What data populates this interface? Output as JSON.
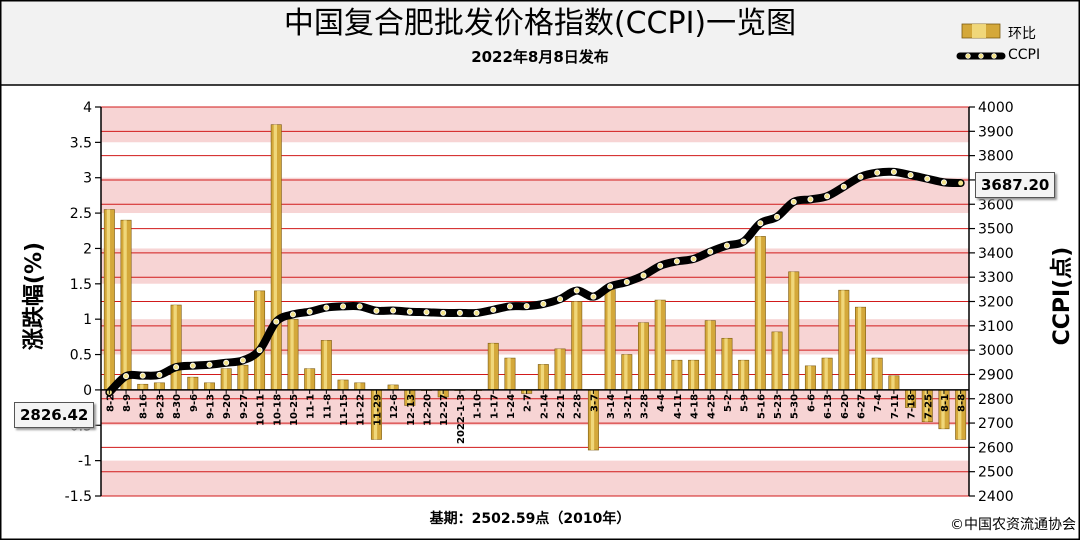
{
  "header": {
    "title": "中国复合肥批发价格指数(CCPI)一览图",
    "subtitle": "2022年8月8日发布"
  },
  "legend": {
    "bar_label": "环比",
    "line_label": "CCPI"
  },
  "footer": {
    "base_note": "基期：2502.59点（2010年）",
    "copyright": "©中国农资流通协会"
  },
  "callouts": {
    "start_value": "2826.42",
    "end_value": "3687.20"
  },
  "colors": {
    "bar_fill": "#d4a83a",
    "bar_highlight": "#f4df86",
    "band_pink": "#f7d4d4",
    "grid_line": "#d11a1a",
    "line_color": "#000000",
    "marker_color": "#f2e28a"
  },
  "chart_data": {
    "type": "bar+line",
    "title": "中国复合肥批发价格指数(CCPI)一览图",
    "subtitle": "2022年8月8日发布",
    "ylabel_left": "涨跌幅(%)",
    "ylabel_right": "CCPI(点)",
    "ylim_left": [
      -1.5,
      4
    ],
    "yticks_left": [
      "4",
      "3.5",
      "3",
      "2.5",
      "2",
      "1.5",
      "1",
      "0.5",
      "0",
      "-0.5",
      "-1",
      "-1.5"
    ],
    "ylim_right": [
      2400,
      4000
    ],
    "yticks_right": [
      "4000",
      "3900",
      "3800",
      "3700",
      "3600",
      "3500",
      "3400",
      "3300",
      "3200",
      "3100",
      "3000",
      "2900",
      "2800",
      "2700",
      "2600",
      "2500",
      "2400"
    ],
    "grid": true,
    "legend_position": "top-right",
    "x_tick_labels": [
      "8-2",
      "8-9",
      "8-16",
      "8-23",
      "8-30",
      "9-6",
      "9-13",
      "9-20",
      "9-27",
      "10-11",
      "10-18",
      "10-25",
      "11-1",
      "11-8",
      "11-15",
      "11-22",
      "11-29",
      "12-6",
      "12-13",
      "12-20",
      "12-27",
      "2022-1-3",
      "1-10",
      "1-17",
      "1-24",
      "2-7",
      "2-14",
      "2-21",
      "2-28",
      "3-7",
      "3-14",
      "3-21",
      "3-28",
      "4-4",
      "4-11",
      "4-18",
      "4-25",
      "5-2",
      "5-9",
      "5-16",
      "5-23",
      "5-30",
      "6-6",
      "6-13",
      "6-20",
      "6-27",
      "7-4",
      "7-11",
      "7-18",
      "7-25",
      "8-1",
      "8-8"
    ],
    "series": [
      {
        "name": "环比",
        "kind": "bar",
        "axis": "left",
        "values": [
          2.55,
          2.4,
          0.08,
          0.1,
          1.2,
          0.18,
          0.1,
          0.3,
          0.35,
          1.4,
          3.75,
          1.0,
          0.3,
          0.7,
          0.14,
          0.1,
          -0.7,
          0.07,
          -0.22,
          0.0,
          -0.1,
          0.0,
          0.0,
          0.66,
          0.45,
          -0.05,
          0.36,
          0.58,
          1.25,
          -0.85,
          1.42,
          0.5,
          0.95,
          1.27,
          0.42,
          0.42,
          0.98,
          0.73,
          0.42,
          2.17,
          0.82,
          1.67,
          0.34,
          0.45,
          1.41,
          1.17,
          0.45,
          0.2,
          -0.25,
          -0.45,
          -0.55,
          -0.7
        ]
      },
      {
        "name": "CCPI",
        "kind": "line",
        "axis": "right",
        "values": [
          2826.42,
          2893,
          2895,
          2898,
          2930,
          2936,
          2940,
          2948,
          2958,
          3000,
          3117,
          3147,
          3158,
          3175,
          3180,
          3180,
          3162,
          3163,
          3158,
          3156,
          3153,
          3153,
          3153,
          3166,
          3180,
          3181,
          3190,
          3210,
          3245,
          3220,
          3262,
          3280,
          3307,
          3347,
          3365,
          3375,
          3405,
          3430,
          3447,
          3522,
          3548,
          3610,
          3620,
          3633,
          3672,
          3713,
          3730,
          3733,
          3720,
          3705,
          3690,
          3687.2
        ]
      }
    ]
  }
}
